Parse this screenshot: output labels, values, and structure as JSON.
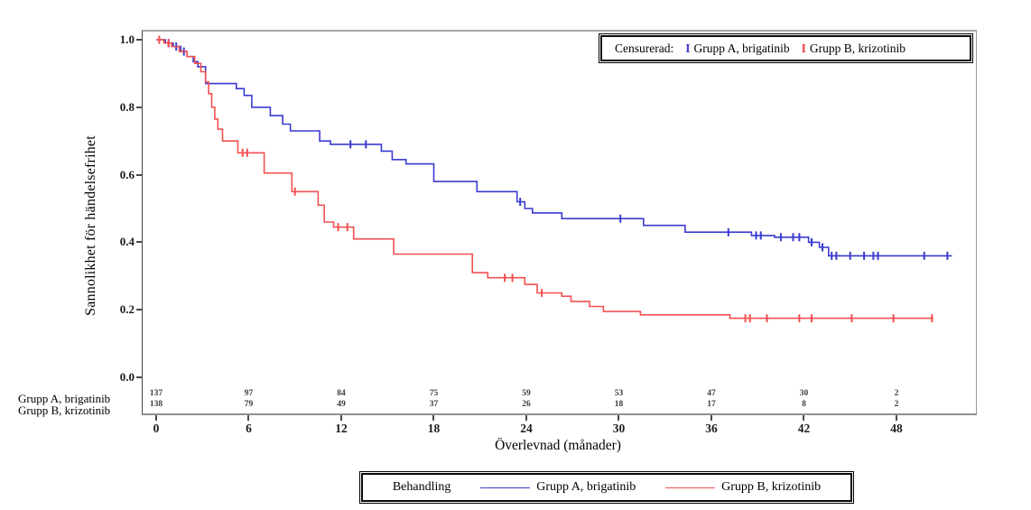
{
  "y_axis": {
    "title": "Sannolikhet för händelsefrihet",
    "tick_labels": [
      "1.0",
      "0.8",
      "0.6",
      "0.4",
      "0.2",
      "0.0"
    ]
  },
  "x_axis": {
    "title": "Överlevnad (månader)",
    "tick_labels": [
      "0",
      "6",
      "12",
      "18",
      "24",
      "30",
      "36",
      "42",
      "48"
    ]
  },
  "censored_legend": {
    "label": "Censurerad:",
    "items": [
      {
        "label": "Grupp A, brigatinib",
        "color": "#3a3ad2"
      },
      {
        "label": "Grupp B, krizotinib",
        "color": "#ee4040"
      }
    ]
  },
  "treatment_legend": {
    "label": "Behandling",
    "items": [
      {
        "label": "Grupp A, brigatinib",
        "color": "#3a3ad2"
      },
      {
        "label": "Grupp B, krizotinib",
        "color": "#f25050"
      }
    ]
  },
  "at_risk_table": {
    "rows": [
      {
        "label": "Grupp A, brigatinib",
        "values": [
          "137",
          "97",
          "84",
          "75",
          "59",
          "53",
          "47",
          "30",
          "2"
        ]
      },
      {
        "label": "Grupp B, krizotinib",
        "values": [
          "138",
          "79",
          "49",
          "37",
          "26",
          "18",
          "17",
          "8",
          "2"
        ]
      }
    ]
  },
  "chart_data": {
    "type": "line",
    "subtype": "kaplan-meier-step",
    "title": "",
    "xlabel": "Överlevnad (månader)",
    "ylabel": "Sannolikhet för händelsefrihet",
    "xlim": [
      0,
      53
    ],
    "ylim": [
      0.0,
      1.0
    ],
    "x_ticks": [
      0,
      6,
      12,
      18,
      24,
      30,
      36,
      42,
      48
    ],
    "y_ticks": [
      1.0,
      0.8,
      0.6,
      0.4,
      0.2,
      0.0
    ],
    "grid": false,
    "legend_position": "bottom",
    "series": [
      {
        "name": "Grupp A, brigatinib",
        "color": "#3a3ad2",
        "steps": [
          [
            0,
            1.0
          ],
          [
            0.6,
            0.99
          ],
          [
            1.1,
            0.98
          ],
          [
            1.6,
            0.965
          ],
          [
            2.0,
            0.95
          ],
          [
            2.4,
            0.935
          ],
          [
            2.7,
            0.92
          ],
          [
            3.2,
            0.87
          ],
          [
            5.2,
            0.855
          ],
          [
            5.7,
            0.835
          ],
          [
            6.2,
            0.8
          ],
          [
            7.4,
            0.775
          ],
          [
            8.2,
            0.75
          ],
          [
            8.7,
            0.73
          ],
          [
            10.6,
            0.7
          ],
          [
            11.3,
            0.69
          ],
          [
            14.6,
            0.67
          ],
          [
            15.3,
            0.645
          ],
          [
            16.2,
            0.632
          ],
          [
            18.0,
            0.58
          ],
          [
            20.8,
            0.55
          ],
          [
            23.4,
            0.52
          ],
          [
            23.9,
            0.5
          ],
          [
            24.4,
            0.487
          ],
          [
            26.3,
            0.47
          ],
          [
            31.6,
            0.45
          ],
          [
            34.3,
            0.43
          ],
          [
            38.6,
            0.42
          ],
          [
            40.1,
            0.415
          ],
          [
            42.3,
            0.4
          ],
          [
            43.0,
            0.385
          ],
          [
            43.6,
            0.36
          ]
        ],
        "end_time": 51.6,
        "censored": [
          [
            0.8,
            0.99
          ],
          [
            1.3,
            0.98
          ],
          [
            1.8,
            0.965
          ],
          [
            12.6,
            0.69
          ],
          [
            13.6,
            0.69
          ],
          [
            23.6,
            0.52
          ],
          [
            30.1,
            0.47
          ],
          [
            37.1,
            0.43
          ],
          [
            38.9,
            0.42
          ],
          [
            39.2,
            0.42
          ],
          [
            40.5,
            0.415
          ],
          [
            41.3,
            0.415
          ],
          [
            41.7,
            0.415
          ],
          [
            42.5,
            0.4
          ],
          [
            43.2,
            0.385
          ],
          [
            43.8,
            0.36
          ],
          [
            44.1,
            0.36
          ],
          [
            45.0,
            0.36
          ],
          [
            45.9,
            0.36
          ],
          [
            46.5,
            0.36
          ],
          [
            46.8,
            0.36
          ],
          [
            49.8,
            0.36
          ],
          [
            51.3,
            0.36
          ]
        ]
      },
      {
        "name": "Grupp B, krizotinib",
        "color": "#f25050",
        "steps": [
          [
            0,
            1.0
          ],
          [
            0.5,
            0.99
          ],
          [
            1.0,
            0.98
          ],
          [
            1.5,
            0.965
          ],
          [
            2.0,
            0.95
          ],
          [
            2.5,
            0.93
          ],
          [
            2.9,
            0.905
          ],
          [
            3.2,
            0.875
          ],
          [
            3.4,
            0.84
          ],
          [
            3.6,
            0.8
          ],
          [
            3.8,
            0.765
          ],
          [
            4.0,
            0.735
          ],
          [
            4.3,
            0.7
          ],
          [
            5.3,
            0.665
          ],
          [
            7.0,
            0.605
          ],
          [
            8.8,
            0.55
          ],
          [
            10.5,
            0.51
          ],
          [
            10.9,
            0.46
          ],
          [
            11.5,
            0.445
          ],
          [
            12.8,
            0.41
          ],
          [
            15.4,
            0.365
          ],
          [
            20.5,
            0.31
          ],
          [
            21.5,
            0.295
          ],
          [
            23.9,
            0.275
          ],
          [
            24.7,
            0.25
          ],
          [
            26.3,
            0.24
          ],
          [
            26.9,
            0.225
          ],
          [
            28.1,
            0.21
          ],
          [
            29.0,
            0.195
          ],
          [
            31.4,
            0.185
          ],
          [
            37.2,
            0.175
          ]
        ],
        "end_time": 50.4,
        "censored": [
          [
            0.2,
            1.0
          ],
          [
            0.8,
            0.99
          ],
          [
            5.6,
            0.665
          ],
          [
            5.9,
            0.665
          ],
          [
            9.0,
            0.55
          ],
          [
            11.8,
            0.445
          ],
          [
            12.4,
            0.445
          ],
          [
            22.6,
            0.295
          ],
          [
            23.1,
            0.295
          ],
          [
            25.0,
            0.25
          ],
          [
            38.2,
            0.175
          ],
          [
            38.5,
            0.175
          ],
          [
            39.6,
            0.175
          ],
          [
            41.7,
            0.175
          ],
          [
            42.5,
            0.175
          ],
          [
            45.1,
            0.175
          ],
          [
            47.8,
            0.175
          ],
          [
            50.3,
            0.175
          ]
        ]
      }
    ]
  }
}
